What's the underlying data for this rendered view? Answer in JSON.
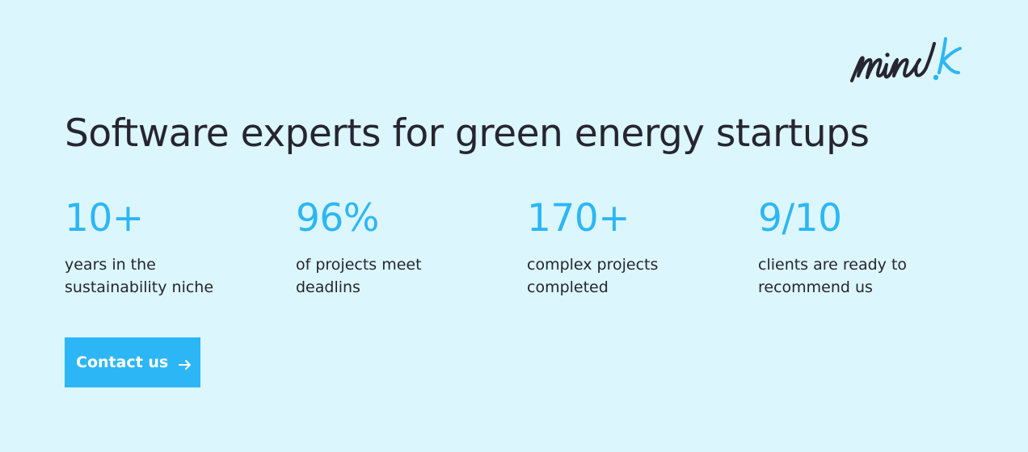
{
  "brand": {
    "logo_text": "mind.k",
    "logo_icon": "mindk-script-logo",
    "colors": {
      "background": "#dbf6fd",
      "accent": "#2db6f5",
      "text": "#262530"
    }
  },
  "headline": "Software experts for green energy startups",
  "stats": [
    {
      "value": "10+",
      "label_line1": "years in the",
      "label_line2": "sustainability niche"
    },
    {
      "value": "96%",
      "label_line1": "of projects meet",
      "label_line2": "deadlins"
    },
    {
      "value": "170+",
      "label_line1": "complex projects",
      "label_line2": "completed"
    },
    {
      "value": "9/10",
      "label_line1": "clients are ready to",
      "label_line2": "recommend us"
    }
  ],
  "cta": {
    "label": "Contact us",
    "icon": "arrow-right-icon"
  }
}
